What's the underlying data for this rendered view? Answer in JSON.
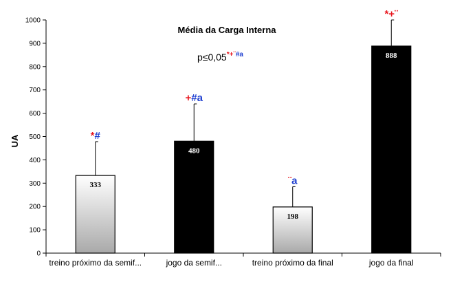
{
  "chart_data": {
    "type": "bar",
    "title": "Média da Carga Interna",
    "annotation": "p≤0,05",
    "annotation_marks": [
      {
        "text": "*",
        "color": "#e8141c"
      },
      {
        "text": "+",
        "color": "#e8141c"
      },
      {
        "text": "¨",
        "color": "#e8141c"
      },
      {
        "text": "#a",
        "color": "#1f3fd0"
      }
    ],
    "ylabel": "UA",
    "xlabel": "",
    "ylim": [
      0,
      1000
    ],
    "yticks": [
      0,
      100,
      200,
      300,
      400,
      500,
      600,
      700,
      800,
      900,
      1000
    ],
    "grid": false,
    "categories": [
      "treino próximo da semif...",
      "jogo da semif...",
      "treino próximo da final",
      "jogo da final"
    ],
    "values": [
      333,
      480,
      198,
      888
    ],
    "value_labels": [
      "333",
      "480",
      "198",
      "888"
    ],
    "error_upper": [
      478,
      640,
      285,
      1000
    ],
    "bar_styles": [
      "gradient-light",
      "black",
      "gradient-light",
      "black"
    ],
    "significance": [
      [
        {
          "text": "*",
          "color": "#e8141c"
        },
        {
          "text": "#",
          "color": "#1f3fd0"
        }
      ],
      [
        {
          "text": "+",
          "color": "#e8141c"
        },
        {
          "text": "#a",
          "color": "#1f3fd0"
        }
      ],
      [
        {
          "text": "¨",
          "color": "#e8141c"
        },
        {
          "text": "a",
          "color": "#1f3fd0"
        }
      ],
      [
        {
          "text": "*+",
          "color": "#e8141c"
        },
        {
          "text": "¨",
          "color": "#e8141c"
        }
      ]
    ]
  }
}
